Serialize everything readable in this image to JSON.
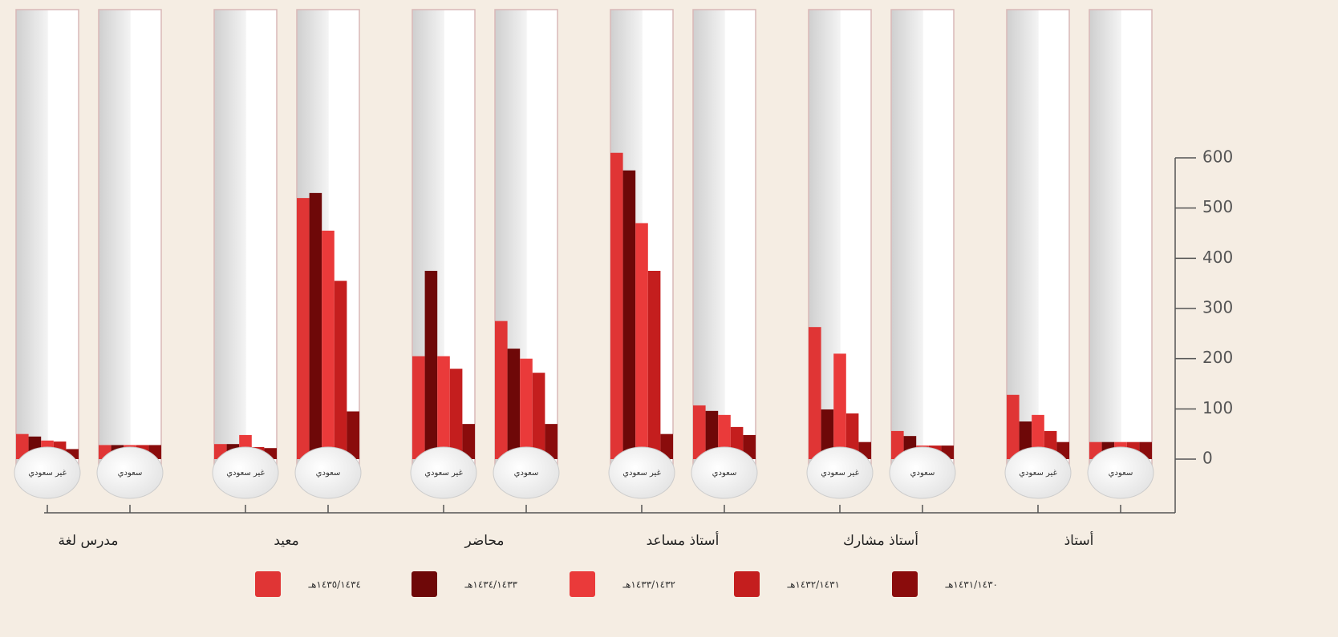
{
  "chart_data": {
    "type": "bar",
    "categories": [
      "أستاذ",
      "أستاذ مشارك",
      "أستاذ مساعد",
      "محاضر",
      "معيد",
      "مدرس لغة"
    ],
    "subcategories": [
      "غير سعودي",
      "سعودي"
    ],
    "series": [
      {
        "name": "١٤٣٥/١٤٣٤هـ",
        "color": "#e03535",
        "values": [
          [
            128,
            34
          ],
          [
            263,
            56
          ],
          [
            610,
            107
          ],
          [
            205,
            275
          ],
          [
            30,
            520
          ],
          [
            50,
            28
          ]
        ]
      },
      {
        "name": "١٤٣٤/١٤٣٣هـ",
        "color": "#6e0808",
        "values": [
          [
            75,
            34
          ],
          [
            99,
            46
          ],
          [
            575,
            96
          ],
          [
            375,
            220
          ],
          [
            30,
            530
          ],
          [
            45,
            28
          ]
        ]
      },
      {
        "name": "١٤٣٣/١٤٣٢هـ",
        "color": "#ea3a3a",
        "values": [
          [
            88,
            34
          ],
          [
            210,
            27
          ],
          [
            470,
            88
          ],
          [
            205,
            200
          ],
          [
            48,
            455
          ],
          [
            37,
            28
          ]
        ]
      },
      {
        "name": "١٤٣٢/١٤٣١هـ",
        "color": "#c41e1e",
        "values": [
          [
            56,
            34
          ],
          [
            91,
            27
          ],
          [
            375,
            64
          ],
          [
            180,
            172
          ],
          [
            24,
            355
          ],
          [
            35,
            28
          ]
        ]
      },
      {
        "name": "١٤٣١/١٤٣٠هـ",
        "color": "#8a0c0c",
        "values": [
          [
            34,
            34
          ],
          [
            34,
            27
          ],
          [
            50,
            48
          ],
          [
            70,
            70
          ],
          [
            22,
            95
          ],
          [
            20,
            28
          ]
        ]
      }
    ],
    "ylim": [
      0,
      600
    ],
    "yticks": [
      0,
      100,
      200,
      300,
      400,
      500,
      600
    ]
  }
}
